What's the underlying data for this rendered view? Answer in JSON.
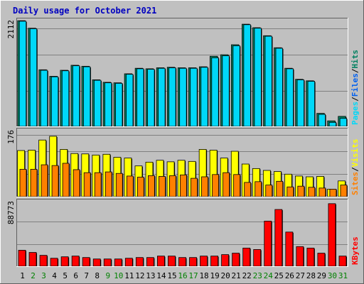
{
  "chart_data": {
    "type": "bar",
    "title": "Daily usage for October 2021",
    "days": [
      "1",
      "2",
      "3",
      "4",
      "5",
      "6",
      "7",
      "8",
      "9",
      "10",
      "11",
      "12",
      "13",
      "14",
      "15",
      "16",
      "17",
      "18",
      "19",
      "20",
      "21",
      "22",
      "23",
      "24",
      "25",
      "26",
      "27",
      "28",
      "29",
      "30",
      "31"
    ],
    "weekend_days": [
      "2",
      "3",
      "9",
      "10",
      "16",
      "17",
      "23",
      "24",
      "30",
      "31"
    ],
    "colors": {
      "pages": "#00d8f8",
      "files": "#0060f0",
      "hits": "#008060",
      "visits": "#ffff00",
      "sites": "#ff8000",
      "kbytes": "#ff0000",
      "title": "#0000c0",
      "weekday_label": "#000000",
      "weekend_label": "#008000"
    },
    "panels": [
      {
        "id": "top",
        "max_label": "2112",
        "ymax": 2112,
        "legend": [
          {
            "text": "Pages",
            "color": "#00d8f8"
          },
          {
            "text": "/",
            "color": "#000000"
          },
          {
            "text": "Files",
            "color": "#0060f0"
          },
          {
            "text": "/",
            "color": "#000000"
          },
          {
            "text": "Hits",
            "color": "#008060"
          }
        ],
        "series": [
          {
            "name": "Hits",
            "color": "#008060",
            "values": [
              2110,
              1960,
              1130,
              1000,
              1120,
              1220,
              1200,
              930,
              880,
              870,
              1050,
              1160,
              1150,
              1170,
              1180,
              1170,
              1170,
              1190,
              1400,
              1430,
              1630,
              2040,
              1970,
              1810,
              1570,
              1160,
              940,
              910,
              260,
              110,
              200
            ]
          },
          {
            "name": "Pages",
            "color": "#00d8f8",
            "values": [
              2100,
              1950,
              1120,
              990,
              1110,
              1210,
              1190,
              920,
              870,
              860,
              1040,
              1150,
              1140,
              1160,
              1170,
              1160,
              1160,
              1180,
              1370,
              1410,
              1610,
              2030,
              1960,
              1800,
              1560,
              1150,
              930,
              900,
              240,
              80,
              160
            ]
          }
        ]
      },
      {
        "id": "middle",
        "max_label": "176",
        "ymax": 176,
        "legend": [
          {
            "text": "Sites",
            "color": "#ff8000"
          },
          {
            "text": "/",
            "color": "#000000"
          },
          {
            "text": "Visits",
            "color": "#ffff00"
          }
        ],
        "series": [
          {
            "name": "Visits",
            "color": "#ffff00",
            "values": [
              123,
              124,
              151,
              161,
              126,
              115,
              114,
              111,
              113,
              105,
              103,
              82,
              92,
              97,
              93,
              97,
              94,
              126,
              124,
              103,
              121,
              87,
              75,
              70,
              67,
              60,
              55,
              53,
              54,
              20,
              42
            ]
          },
          {
            "name": "Sites",
            "color": "#ff8000",
            "values": [
              73,
              73,
              85,
              83,
              89,
              72,
              64,
              64,
              66,
              62,
              55,
              52,
              56,
              54,
              56,
              58,
              49,
              53,
              59,
              64,
              59,
              38,
              40,
              31,
              41,
              26,
              28,
              25,
              23,
              20,
              31
            ]
          }
        ]
      },
      {
        "id": "bottom",
        "max_label": "88773",
        "ymax": 88773,
        "legend": [
          {
            "text": "KBytes",
            "color": "#ff0000"
          }
        ],
        "series": [
          {
            "name": "KBytes",
            "color": "#ff0000",
            "values": [
              22000,
              19000,
              15000,
              11000,
              13000,
              14000,
              12000,
              10000,
              10000,
              10000,
              11000,
              12000,
              12000,
              14000,
              14000,
              12000,
              12000,
              14000,
              14000,
              16000,
              18000,
              25000,
              23000,
              62000,
              78000,
              47000,
              27000,
              25000,
              18000,
              86000,
              14000
            ]
          }
        ]
      }
    ]
  }
}
